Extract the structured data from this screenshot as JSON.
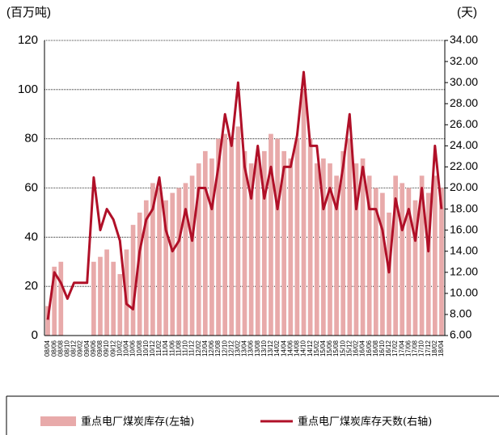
{
  "chart_data": {
    "type": "bar-line",
    "y_label": "(百万吨)",
    "y2_label": "(天)",
    "categories": [
      "08/04",
      "08/06",
      "08/08",
      "08/10",
      "08/12",
      "09/02",
      "09/04",
      "09/06",
      "09/08",
      "09/10",
      "09/12",
      "10/02",
      "10/04",
      "10/06",
      "10/08",
      "10/10",
      "10/12",
      "11/02",
      "11/04",
      "11/06",
      "11/08",
      "11/10",
      "11/12",
      "12/02",
      "12/04",
      "12/06",
      "12/08",
      "12/10",
      "12/12",
      "13/02",
      "13/04",
      "13/06",
      "13/08",
      "13/10",
      "13/12",
      "14/02",
      "14/04",
      "14/06",
      "14/08",
      "14/10",
      "14/12",
      "15/02",
      "15/04",
      "15/06",
      "15/08",
      "15/10",
      "15/12",
      "16/02",
      "16/04",
      "16/06",
      "16/08",
      "16/10",
      "16/12",
      "17/02",
      "17/04",
      "17/06",
      "17/08",
      "17/10",
      "17/12",
      "18/02",
      "18/04"
    ],
    "series": [
      {
        "name": "重点电厂煤炭库存(左轴)",
        "type": "bar",
        "color": "#e8aaaa",
        "values": [
          12,
          28,
          30,
          0,
          0,
          0,
          0,
          30,
          32,
          35,
          30,
          25,
          35,
          45,
          50,
          55,
          62,
          60,
          55,
          58,
          60,
          62,
          65,
          70,
          75,
          72,
          80,
          82,
          80,
          85,
          75,
          70,
          72,
          75,
          82,
          80,
          75,
          72,
          80,
          100,
          80,
          70,
          72,
          70,
          65,
          75,
          80,
          70,
          72,
          65,
          60,
          58,
          50,
          65,
          62,
          60,
          55,
          65,
          58,
          65,
          60
        ]
      },
      {
        "name": "重点电厂煤炭库存天数(右轴)",
        "type": "line",
        "axis": "y2",
        "color": "#b01028",
        "values": [
          7.5,
          12,
          11,
          9.5,
          11,
          11,
          11,
          21,
          16,
          18,
          17,
          15,
          9,
          8.5,
          14,
          17,
          18,
          21,
          16,
          14,
          15,
          18,
          15,
          20,
          20,
          18,
          22,
          27,
          24,
          30,
          22,
          19,
          24,
          19,
          22,
          18,
          22,
          22,
          25,
          31,
          24,
          24,
          18,
          20,
          18,
          22,
          27,
          18,
          22,
          18,
          18,
          16,
          12,
          19,
          16,
          18,
          15,
          20,
          14,
          24,
          18
        ]
      }
    ],
    "ylim": [
      0,
      120
    ],
    "yticks": [
      0,
      20,
      40,
      60,
      80,
      100,
      120
    ],
    "y2lim": [
      6,
      34
    ],
    "y2ticks": [
      {
        "value": 6,
        "label": "6.00"
      },
      {
        "value": 8,
        "label": "8.00"
      },
      {
        "value": 10,
        "label": "10.00"
      },
      {
        "value": 12,
        "label": "12.00"
      },
      {
        "value": 14,
        "label": "14.00"
      },
      {
        "value": 16,
        "label": "16.00"
      },
      {
        "value": 18,
        "label": "18.00"
      },
      {
        "value": 20,
        "label": "20.00"
      },
      {
        "value": 22,
        "label": "22.00"
      },
      {
        "value": 24,
        "label": "24.00"
      },
      {
        "value": 26,
        "label": "26.00"
      },
      {
        "value": 28,
        "label": "28.00"
      },
      {
        "value": 30,
        "label": "30.00"
      },
      {
        "value": 32,
        "label": "32.00"
      },
      {
        "value": 34,
        "label": "34.00"
      }
    ],
    "grid": true
  }
}
